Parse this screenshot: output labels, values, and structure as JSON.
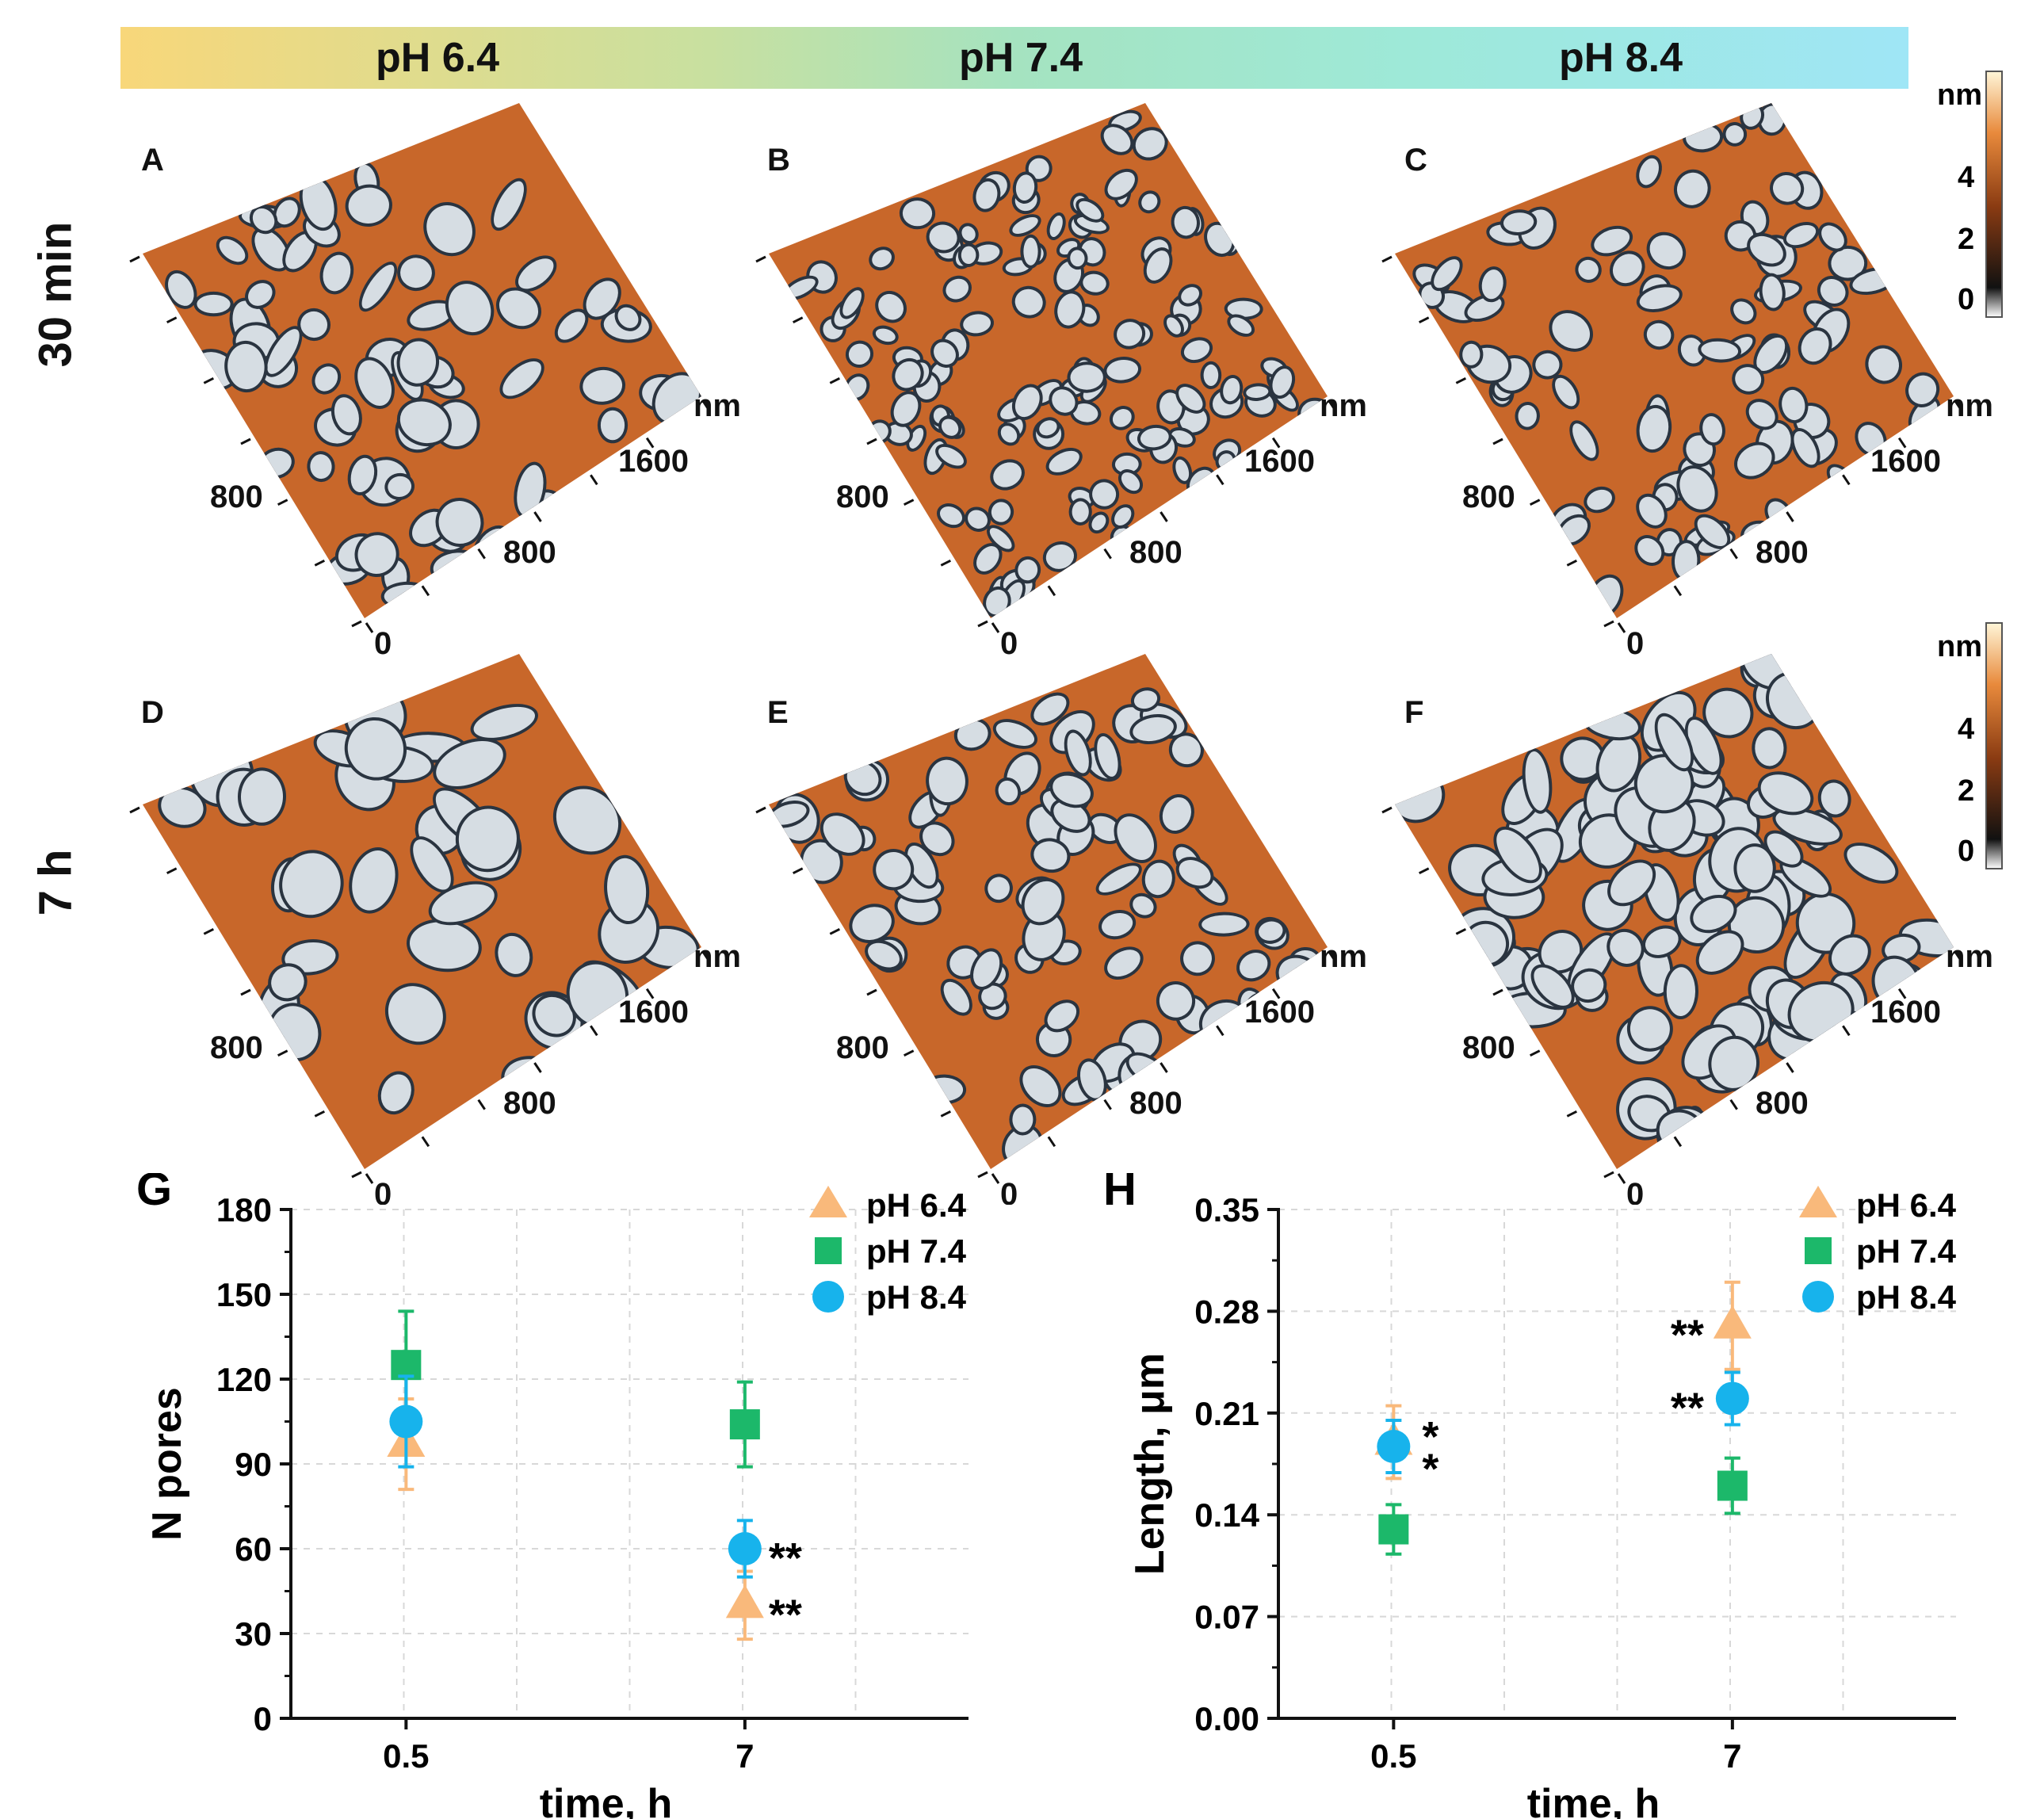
{
  "header": {
    "ph_labels": [
      "pH 6.4",
      "pH 7.4",
      "pH 8.4"
    ]
  },
  "rows": {
    "top_label": "30 min",
    "bottom_label": "7 h"
  },
  "panels": [
    {
      "letter": "A",
      "unit": "nm",
      "ticks": [
        "1600",
        "800",
        "800",
        "0"
      ]
    },
    {
      "letter": "B",
      "unit": "nm",
      "ticks": [
        "1600",
        "800",
        "800",
        "0"
      ]
    },
    {
      "letter": "C",
      "unit": "nm",
      "ticks": [
        "1600",
        "800",
        "800",
        "0"
      ]
    },
    {
      "letter": "D",
      "unit": "nm",
      "ticks": [
        "1600",
        "800",
        "800",
        "0"
      ]
    },
    {
      "letter": "E",
      "unit": "nm",
      "ticks": [
        "1600",
        "800",
        "800",
        "0"
      ]
    },
    {
      "letter": "F",
      "unit": "nm",
      "ticks": [
        "1600",
        "800",
        "800",
        "0"
      ]
    }
  ],
  "colorbars": [
    {
      "unit": "nm",
      "ticks": [
        "4",
        "2",
        "0"
      ]
    },
    {
      "unit": "nm",
      "ticks": [
        "4",
        "2",
        "0"
      ]
    }
  ],
  "colors": {
    "ph64": "#f9b97b",
    "ph74": "#1cb86a",
    "ph84": "#17b3ec",
    "film": "#c8672a",
    "pore": "#d6dde3",
    "rim": "#2a3440"
  },
  "chart_data": [
    {
      "panel": "G",
      "type": "scatter",
      "xlabel": "time, h",
      "ylabel": "N pores",
      "categories": [
        "0.5",
        "7"
      ],
      "ylim": [
        0,
        180
      ],
      "yticks": [
        "0",
        "30",
        "60",
        "90",
        "120",
        "150",
        "180"
      ],
      "series": [
        {
          "name": "pH 6.4",
          "marker": "triangle",
          "values": [
            97,
            40
          ],
          "errors": [
            16,
            12
          ]
        },
        {
          "name": "pH 7.4",
          "marker": "square",
          "values": [
            125,
            104
          ],
          "errors": [
            19,
            15
          ]
        },
        {
          "name": "pH 8.4",
          "marker": "circle",
          "values": [
            105,
            60
          ],
          "errors": [
            16,
            10
          ]
        }
      ],
      "annotations": [
        {
          "text": "**",
          "category": "7",
          "y": 60
        },
        {
          "text": "**",
          "category": "7",
          "y": 40
        }
      ]
    },
    {
      "panel": "H",
      "type": "scatter",
      "xlabel": "time, h",
      "ylabel": "Length, μm",
      "categories": [
        "0.5",
        "7"
      ],
      "ylim": [
        0,
        0.35
      ],
      "yticks": [
        "0.00",
        "0.07",
        "0.14",
        "0.21",
        "0.28",
        "0.35"
      ],
      "series": [
        {
          "name": "pH 6.4",
          "marker": "triangle",
          "values": [
            0.19,
            0.27
          ],
          "errors": [
            0.025,
            0.03
          ]
        },
        {
          "name": "pH 7.4",
          "marker": "square",
          "values": [
            0.13,
            0.16
          ],
          "errors": [
            0.017,
            0.019
          ]
        },
        {
          "name": "pH 8.4",
          "marker": "circle",
          "values": [
            0.187,
            0.22
          ],
          "errors": [
            0.018,
            0.018
          ]
        }
      ],
      "annotations": [
        {
          "text": "*",
          "category": "0.5",
          "y": 0.2
        },
        {
          "text": "*",
          "category": "0.5",
          "y": 0.178
        },
        {
          "text": "**",
          "category": "7",
          "y": 0.27
        },
        {
          "text": "**",
          "category": "7",
          "y": 0.22
        }
      ]
    }
  ]
}
